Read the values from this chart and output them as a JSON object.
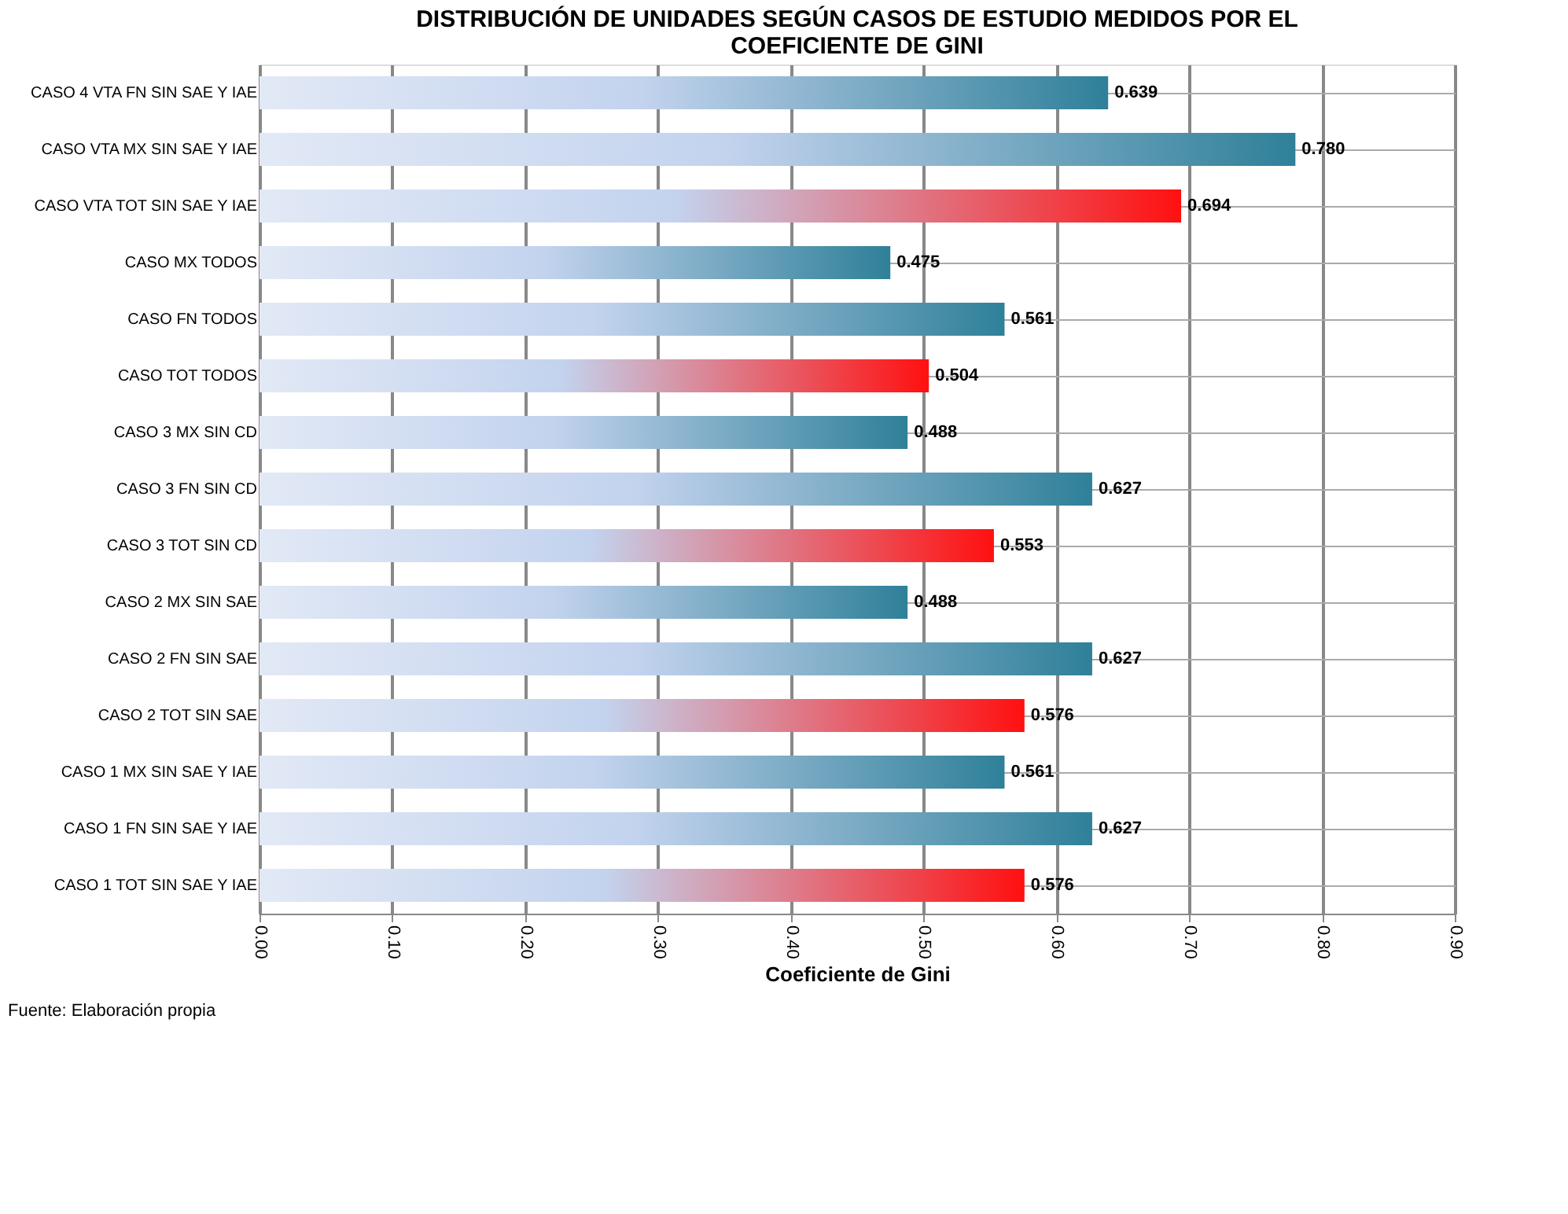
{
  "chart_data": {
    "type": "bar",
    "orientation": "horizontal",
    "title": [
      "DISTRIBUCIÓN DE UNIDADES SEGÚN CASOS DE ESTUDIO MEDIDOS POR EL",
      "COEFICIENTE DE GINI"
    ],
    "xlabel": "Coeficiente de Gini",
    "categories": [
      "CASO 4 VTA FN SIN SAE Y IAE",
      "CASO  VTA MX SIN SAE Y IAE",
      "CASO  VTA TOT SIN SAE Y IAE",
      "CASO  MX TODOS",
      "CASO  FN TODOS",
      "CASO  TOT TODOS",
      "CASO 3 MX SIN CD",
      "CASO 3 FN SIN CD",
      "CASO 3 TOT SIN CD",
      "CASO 2 MX SIN SAE",
      "CASO 2 FN SIN SAE",
      "CASO 2 TOT SIN SAE",
      "CASO 1 MX SIN SAE Y IAE",
      "CASO 1 FN SIN SAE Y IAE",
      "CASO 1 TOT SIN SAE Y IAE"
    ],
    "values": [
      0.639,
      0.78,
      0.694,
      0.475,
      0.561,
      0.504,
      0.488,
      0.627,
      0.553,
      0.488,
      0.627,
      0.576,
      0.561,
      0.627,
      0.576
    ],
    "value_labels": [
      "0.639",
      "0.780",
      "0.694",
      "0.475",
      "0.561",
      "0.504",
      "0.488",
      "0.627",
      "0.553",
      "0.488",
      "0.627",
      "0.576",
      "0.561",
      "0.627",
      "0.576"
    ],
    "colors": [
      "#2f8099",
      "#2f8099",
      "#ff1010",
      "#2f8099",
      "#2f8099",
      "#ff1010",
      "#2f8099",
      "#2f8099",
      "#ff1010",
      "#2f8099",
      "#2f8099",
      "#ff1010",
      "#2f8099",
      "#2f8099",
      "#ff1010"
    ],
    "xlim": [
      0,
      0.9
    ],
    "xticks": [
      {
        "value": 0,
        "label": "0.00"
      },
      {
        "value": 0.1,
        "label": "0.10"
      },
      {
        "value": 0.2,
        "label": "0.20"
      },
      {
        "value": 0.3,
        "label": "0.30"
      },
      {
        "value": 0.4,
        "label": "0.40"
      },
      {
        "value": 0.5,
        "label": "0.50"
      },
      {
        "value": 0.6,
        "label": "0.60"
      },
      {
        "value": 0.7,
        "label": "0.70"
      },
      {
        "value": 0.8,
        "label": "0.80"
      },
      {
        "value": 0.9,
        "label": "0.90"
      }
    ],
    "grid": true,
    "annotations": [
      "Fuente: Elaboración propia"
    ]
  }
}
